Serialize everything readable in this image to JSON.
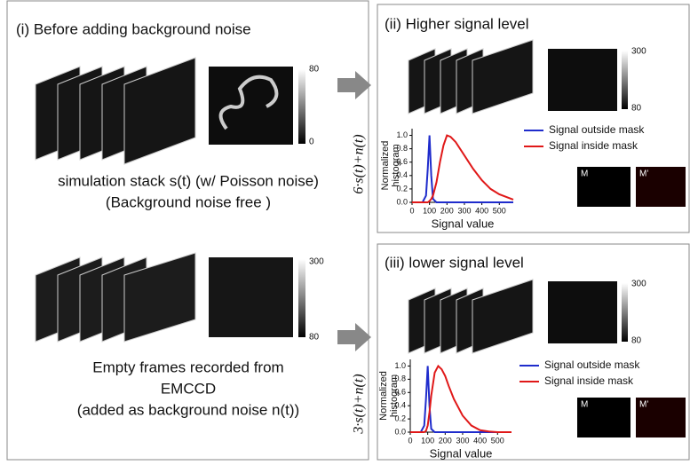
{
  "panel_i": {
    "title": "(i)  Before adding background noise",
    "top_colorbar": [
      "80",
      "0"
    ],
    "top_caption": [
      "simulation stack s(t)  (w/ Poisson noise)",
      "(Background noise free )"
    ],
    "bottom_colorbar": [
      "300",
      "80"
    ],
    "bottom_caption": [
      "Empty frames recorded from",
      "EMCCD",
      "(added as background noise n(t))"
    ]
  },
  "arrows": [
    "6·s(t)+n(t)",
    "3·s(t)+n(t)"
  ],
  "panel_ii": {
    "title": "(ii)  Higher signal level",
    "colorbar": [
      "300",
      "80"
    ],
    "mask_labels": [
      "M",
      "M’"
    ]
  },
  "panel_iii": {
    "title": "(iii)  lower signal level",
    "colorbar": [
      "300",
      "80"
    ],
    "mask_labels": [
      "M",
      "M’"
    ]
  },
  "chart_data": [
    {
      "type": "line",
      "x_label": "Signal value",
      "y_label": [
        "Normalized",
        "histogram"
      ],
      "x": [
        0,
        60,
        80,
        90,
        100,
        110,
        120,
        140,
        160,
        180,
        200,
        220,
        250,
        300,
        350,
        400,
        450,
        500,
        550,
        580
      ],
      "series": [
        {
          "name": "Signal outside mask",
          "color": "#1f2ccc",
          "values": [
            0,
            0,
            0.1,
            0.5,
            1.0,
            0.4,
            0.05,
            0,
            0,
            0,
            0,
            0,
            0,
            0,
            0,
            0,
            0,
            0,
            0,
            0
          ]
        },
        {
          "name": "Signal inside mask",
          "color": "#e01818",
          "values": [
            0,
            0,
            0,
            0,
            0.02,
            0.05,
            0.1,
            0.3,
            0.6,
            0.85,
            1.0,
            0.98,
            0.9,
            0.7,
            0.5,
            0.33,
            0.2,
            0.12,
            0.07,
            0.04
          ]
        }
      ],
      "xlim": [
        0,
        580
      ],
      "ylim": [
        0,
        1.1
      ],
      "xticks": [
        0,
        100,
        200,
        300,
        400,
        500
      ],
      "yticks": [
        {
          "value": 0,
          "label": "0.0"
        },
        0.2,
        0.4,
        0.6,
        0.8,
        {
          "value": 1,
          "label": "1.0"
        }
      ]
    },
    {
      "type": "line",
      "x_label": "Signal value",
      "y_label": [
        "Normalized",
        "histogram"
      ],
      "x": [
        0,
        60,
        80,
        90,
        100,
        110,
        120,
        140,
        160,
        180,
        200,
        220,
        250,
        300,
        350,
        400,
        450,
        500,
        550,
        580
      ],
      "series": [
        {
          "name": "Signal outside mask",
          "color": "#1f2ccc",
          "values": [
            0,
            0,
            0.1,
            0.5,
            1.0,
            0.4,
            0.05,
            0,
            0,
            0,
            0,
            0,
            0,
            0,
            0,
            0,
            0,
            0,
            0,
            0
          ]
        },
        {
          "name": "Signal inside mask",
          "color": "#e01818",
          "values": [
            0,
            0,
            0,
            0.02,
            0.1,
            0.3,
            0.55,
            0.9,
            1.0,
            0.95,
            0.85,
            0.7,
            0.5,
            0.25,
            0.1,
            0.03,
            0.01,
            0,
            0,
            0
          ]
        }
      ],
      "xlim": [
        0,
        580
      ],
      "ylim": [
        0,
        1.1
      ],
      "xticks": [
        0,
        100,
        200,
        300,
        400,
        500
      ],
      "yticks": [
        {
          "value": 0,
          "label": "0.0"
        },
        0.2,
        0.4,
        0.6,
        0.8,
        {
          "value": 1,
          "label": "1.0"
        }
      ]
    }
  ]
}
